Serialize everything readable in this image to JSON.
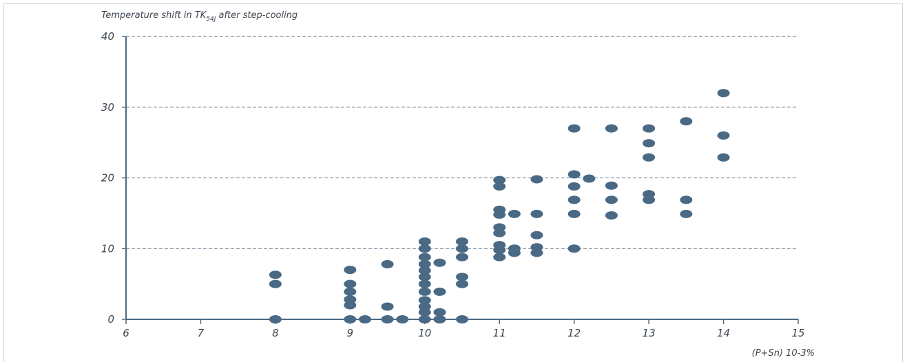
{
  "chart_data": {
    "type": "scatter",
    "title": "Temperature shift in TK",
    "title_subscript": "54J",
    "title_suffix": " after step-cooling",
    "xlabel": "(P+Sn) 10-3%",
    "xlim": [
      6,
      15
    ],
    "ylim": [
      0,
      40
    ],
    "xticks": [
      6,
      7,
      8,
      9,
      10,
      11,
      12,
      13,
      14,
      15
    ],
    "yticks": [
      0,
      10,
      20,
      30,
      40
    ],
    "grid": "horizontal-dashed",
    "point_color": "#4a6985",
    "points": [
      [
        8,
        0
      ],
      [
        8,
        5
      ],
      [
        8,
        6.3
      ],
      [
        9,
        0
      ],
      [
        9,
        2
      ],
      [
        9,
        2.8
      ],
      [
        9,
        3.9
      ],
      [
        9,
        5
      ],
      [
        9,
        7
      ],
      [
        9.2,
        0
      ],
      [
        9.5,
        0
      ],
      [
        9.5,
        1.8
      ],
      [
        9.5,
        7.8
      ],
      [
        9.7,
        0
      ],
      [
        10,
        0
      ],
      [
        10,
        1
      ],
      [
        10,
        1.8
      ],
      [
        10,
        2.7
      ],
      [
        10,
        3.9
      ],
      [
        10,
        5
      ],
      [
        10,
        6
      ],
      [
        10,
        6.9
      ],
      [
        10,
        7.8
      ],
      [
        10,
        8.8
      ],
      [
        10,
        10
      ],
      [
        10,
        11
      ],
      [
        10.2,
        0
      ],
      [
        10.2,
        1
      ],
      [
        10.2,
        3.9
      ],
      [
        10.2,
        8
      ],
      [
        10.5,
        0
      ],
      [
        10.5,
        5
      ],
      [
        10.5,
        6
      ],
      [
        10.5,
        8.8
      ],
      [
        10.5,
        10
      ],
      [
        10.5,
        11
      ],
      [
        11,
        8.8
      ],
      [
        11,
        9.8
      ],
      [
        11,
        10.5
      ],
      [
        11,
        12.2
      ],
      [
        11,
        13
      ],
      [
        11,
        14.8
      ],
      [
        11,
        15.5
      ],
      [
        11,
        18.8
      ],
      [
        11,
        19.7
      ],
      [
        11.2,
        9.4
      ],
      [
        11.2,
        10
      ],
      [
        11.2,
        14.9
      ],
      [
        11.5,
        9.4
      ],
      [
        11.5,
        10.2
      ],
      [
        11.5,
        11.9
      ],
      [
        11.5,
        14.9
      ],
      [
        11.5,
        19.8
      ],
      [
        12,
        10
      ],
      [
        12,
        14.9
      ],
      [
        12,
        16.9
      ],
      [
        12,
        18.8
      ],
      [
        12,
        20.5
      ],
      [
        12,
        27
      ],
      [
        12.2,
        19.9
      ],
      [
        12.5,
        14.7
      ],
      [
        12.5,
        16.9
      ],
      [
        12.5,
        18.9
      ],
      [
        12.5,
        27
      ],
      [
        13,
        16.9
      ],
      [
        13,
        17.7
      ],
      [
        13,
        22.9
      ],
      [
        13,
        24.9
      ],
      [
        13,
        27
      ],
      [
        13.5,
        14.9
      ],
      [
        13.5,
        16.9
      ],
      [
        13.5,
        28
      ],
      [
        14,
        22.9
      ],
      [
        14,
        26
      ],
      [
        14,
        32
      ]
    ]
  }
}
